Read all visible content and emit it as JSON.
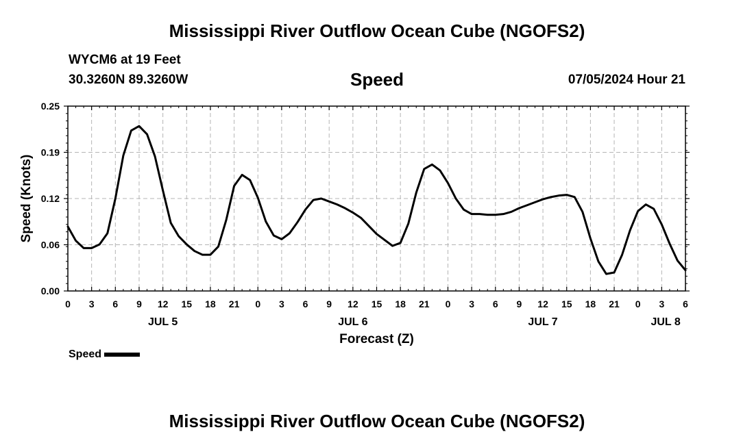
{
  "header": {
    "title": "Mississippi River Outflow Ocean Cube (NGOFS2)",
    "station": "WYCM6 at 19 Feet",
    "coords": "30.3260N  89.3260W",
    "variable": "Speed",
    "datetime": "07/05/2024 Hour 21"
  },
  "footer": {
    "title": "Mississippi River Outflow Ocean Cube (NGOFS2)"
  },
  "legend": {
    "label": "Speed"
  },
  "chart_data": {
    "type": "line",
    "title": "Speed",
    "xlabel": "Forecast (Z)",
    "ylabel": "Speed (Knots)",
    "ylim": [
      0,
      0.25
    ],
    "xlim_hours": [
      0,
      78
    ],
    "x_unit": "hours from JUL 5 00Z",
    "y_ticks": [
      "0.00",
      "0.06",
      "0.12",
      "0.19",
      "0.25"
    ],
    "y_tick_values": [
      0,
      0.0625,
      0.125,
      0.1875,
      0.25
    ],
    "x_ticks": [
      "0",
      "3",
      "6",
      "9",
      "12",
      "15",
      "18",
      "21",
      "0",
      "3",
      "6",
      "9",
      "12",
      "15",
      "18",
      "21",
      "0",
      "3",
      "6",
      "9",
      "12",
      "15",
      "18",
      "21",
      "0",
      "3",
      "6"
    ],
    "date_labels": [
      {
        "label": "JUL 5",
        "hour": 12
      },
      {
        "label": "JUL 6",
        "hour": 36
      },
      {
        "label": "JUL 7",
        "hour": 60
      },
      {
        "label": "JUL 8",
        "hour": 75.5
      }
    ],
    "grid": true,
    "series": [
      {
        "name": "Speed",
        "color": "#000000",
        "x": [
          0,
          1,
          2,
          3,
          4,
          5,
          6,
          7,
          8,
          9,
          10,
          11,
          12,
          13,
          14,
          15,
          16,
          17,
          18,
          19,
          20,
          21,
          22,
          23,
          24,
          25,
          26,
          27,
          28,
          29,
          30,
          31,
          32,
          33,
          34,
          35,
          36,
          37,
          38,
          39,
          40,
          41,
          42,
          43,
          44,
          45,
          46,
          47,
          48,
          49,
          50,
          51,
          52,
          53,
          54,
          55,
          56,
          57,
          58,
          59,
          60,
          61,
          62,
          63,
          64,
          65,
          66,
          67,
          68,
          69,
          70,
          71,
          72,
          73,
          74,
          75,
          76,
          77,
          78
        ],
        "values": [
          0.087,
          0.068,
          0.058,
          0.058,
          0.063,
          0.078,
          0.125,
          0.183,
          0.217,
          0.223,
          0.212,
          0.182,
          0.136,
          0.092,
          0.074,
          0.063,
          0.054,
          0.049,
          0.049,
          0.06,
          0.096,
          0.142,
          0.157,
          0.15,
          0.126,
          0.094,
          0.075,
          0.07,
          0.078,
          0.093,
          0.11,
          0.123,
          0.125,
          0.121,
          0.117,
          0.112,
          0.106,
          0.099,
          0.088,
          0.077,
          0.069,
          0.061,
          0.065,
          0.091,
          0.133,
          0.165,
          0.171,
          0.163,
          0.146,
          0.125,
          0.11,
          0.104,
          0.104,
          0.103,
          0.103,
          0.104,
          0.107,
          0.112,
          0.116,
          0.12,
          0.124,
          0.127,
          0.129,
          0.13,
          0.127,
          0.107,
          0.071,
          0.04,
          0.023,
          0.025,
          0.049,
          0.082,
          0.108,
          0.117,
          0.111,
          0.09,
          0.064,
          0.041,
          0.028
        ]
      }
    ]
  }
}
